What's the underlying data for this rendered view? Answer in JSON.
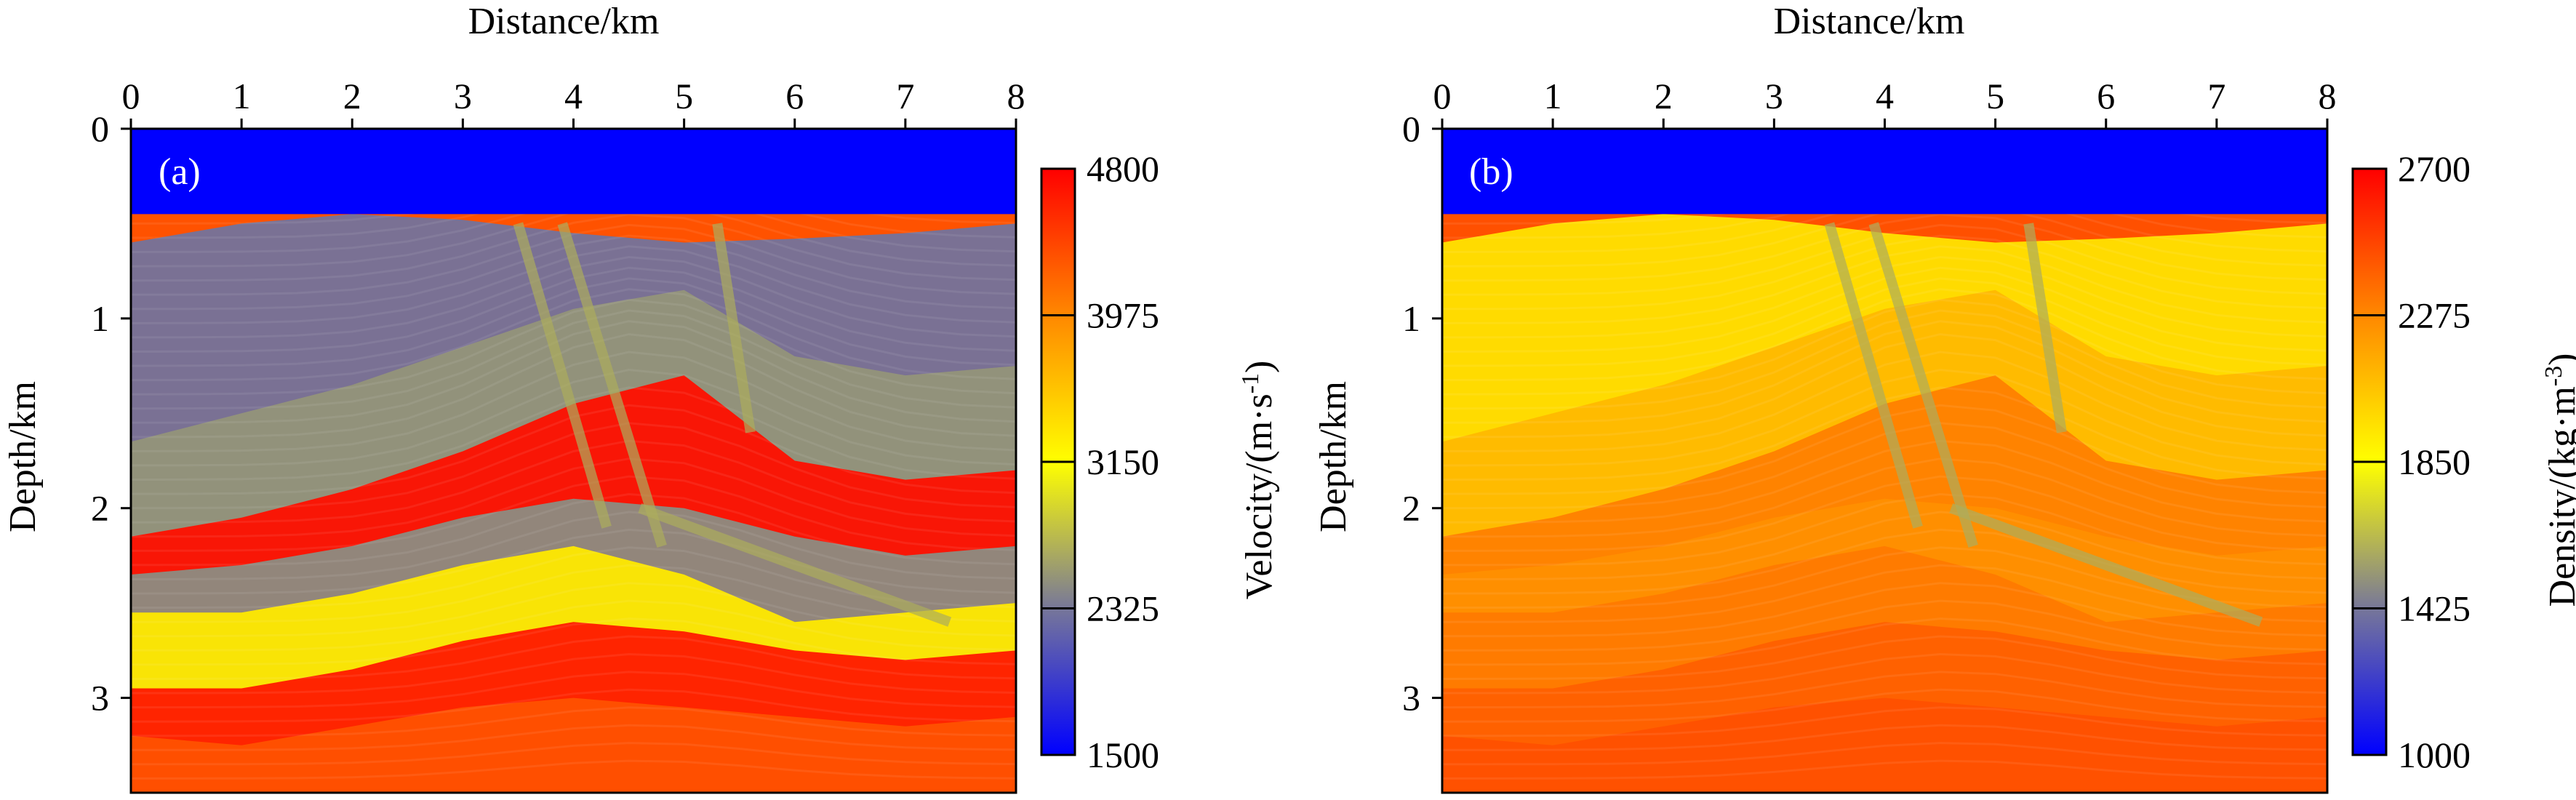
{
  "chart_data": [
    {
      "type": "heatmap",
      "panel_label": "(a)",
      "property": "velocity",
      "xlabel": "Distance/km",
      "ylabel": "Depth/km",
      "xlim": [
        0,
        8
      ],
      "ylim": [
        0,
        3.5
      ],
      "x_ticks": [
        "0",
        "1",
        "2",
        "3",
        "4",
        "5",
        "6",
        "7",
        "8"
      ],
      "y_ticks": [
        "0",
        "1",
        "2",
        "3"
      ],
      "colorbar": {
        "label_main": "Velocity/(m·s",
        "label_sup": "-1",
        "label_end": ")",
        "min": 1500,
        "max": 4800,
        "ticks": [
          "4800",
          "3975",
          "3150",
          "2325",
          "1500"
        ],
        "colors": [
          "#0000ff",
          "#777799",
          "#ffff00",
          "#ff8800",
          "#ff0000"
        ]
      },
      "water_layer": {
        "depth_km": 0.45,
        "value": 1500
      },
      "horizons": [
        {
          "x": [
            0,
            1,
            2,
            3,
            4,
            5,
            6,
            7,
            8
          ],
          "depth": [
            0.6,
            0.5,
            0.45,
            0.48,
            0.55,
            0.6,
            0.58,
            0.55,
            0.5
          ],
          "value": 2300
        },
        {
          "x": [
            0,
            1,
            2,
            3,
            4,
            5,
            6,
            7,
            8
          ],
          "depth": [
            1.65,
            1.5,
            1.35,
            1.15,
            0.95,
            0.85,
            1.2,
            1.3,
            1.25
          ],
          "value": 2500
        },
        {
          "x": [
            0,
            1,
            2,
            3,
            4,
            5,
            6,
            7,
            8
          ],
          "depth": [
            2.15,
            2.05,
            1.9,
            1.7,
            1.45,
            1.3,
            1.75,
            1.85,
            1.8
          ],
          "value": 4700
        },
        {
          "x": [
            0,
            1,
            2,
            3,
            4,
            5,
            6,
            7,
            8
          ],
          "depth": [
            2.35,
            2.3,
            2.2,
            2.05,
            1.95,
            2.0,
            2.15,
            2.25,
            2.2
          ],
          "value": 2450
        },
        {
          "x": [
            0,
            1,
            2,
            3,
            4,
            5,
            6,
            7,
            8
          ],
          "depth": [
            2.55,
            2.55,
            2.45,
            2.3,
            2.2,
            2.35,
            2.6,
            2.55,
            2.5
          ],
          "value": 3300
        },
        {
          "x": [
            0,
            1,
            2,
            3,
            4,
            5,
            6,
            7,
            8
          ],
          "depth": [
            2.95,
            2.95,
            2.85,
            2.7,
            2.6,
            2.65,
            2.75,
            2.8,
            2.75
          ],
          "value": 4650
        },
        {
          "x": [
            0,
            1,
            2,
            3,
            4,
            5,
            6,
            7,
            8
          ],
          "depth": [
            3.2,
            3.25,
            3.15,
            3.05,
            3.0,
            3.05,
            3.1,
            3.15,
            3.1
          ],
          "value": 4300
        }
      ],
      "faults": [
        {
          "x": [
            3.5,
            4.3
          ],
          "depth": [
            0.5,
            2.1
          ]
        },
        {
          "x": [
            3.9,
            4.8
          ],
          "depth": [
            0.5,
            2.2
          ]
        },
        {
          "x": [
            5.3,
            5.6
          ],
          "depth": [
            0.5,
            1.6
          ]
        },
        {
          "x": [
            4.6,
            7.4
          ],
          "depth": [
            2.0,
            2.6
          ]
        }
      ]
    },
    {
      "type": "heatmap",
      "panel_label": "(b)",
      "property": "density",
      "xlabel": "Distance/km",
      "ylabel": "Depth/km",
      "xlim": [
        0,
        8
      ],
      "ylim": [
        0,
        3.5
      ],
      "x_ticks": [
        "0",
        "1",
        "2",
        "3",
        "4",
        "5",
        "6",
        "7",
        "8"
      ],
      "y_ticks": [
        "0",
        "1",
        "2",
        "3"
      ],
      "colorbar": {
        "label_main": "Density/(kg·m",
        "label_sup": "-3",
        "label_end": ")",
        "min": 1000,
        "max": 2700,
        "ticks": [
          "2700",
          "2275",
          "1850",
          "1425",
          "1000"
        ],
        "colors": [
          "#0000ff",
          "#777799",
          "#ffff00",
          "#ff8800",
          "#ff0000"
        ]
      },
      "water_layer": {
        "depth_km": 0.45,
        "value": 1000
      },
      "horizons": [
        {
          "x": [
            0,
            1,
            2,
            3,
            4,
            5,
            6,
            7,
            8
          ],
          "depth": [
            0.6,
            0.5,
            0.45,
            0.48,
            0.55,
            0.6,
            0.58,
            0.55,
            0.5
          ],
          "value": 1950
        },
        {
          "x": [
            0,
            1,
            2,
            3,
            4,
            5,
            6,
            7,
            8
          ],
          "depth": [
            1.65,
            1.5,
            1.35,
            1.15,
            0.95,
            0.85,
            1.2,
            1.3,
            1.25
          ],
          "value": 2100
        },
        {
          "x": [
            0,
            1,
            2,
            3,
            4,
            5,
            6,
            7,
            8
          ],
          "depth": [
            2.15,
            2.05,
            1.9,
            1.7,
            1.45,
            1.3,
            1.75,
            1.85,
            1.8
          ],
          "value": 2300
        },
        {
          "x": [
            0,
            1,
            2,
            3,
            4,
            5,
            6,
            7,
            8
          ],
          "depth": [
            2.35,
            2.3,
            2.2,
            2.05,
            1.95,
            2.0,
            2.15,
            2.25,
            2.2
          ],
          "value": 2250
        },
        {
          "x": [
            0,
            1,
            2,
            3,
            4,
            5,
            6,
            7,
            8
          ],
          "depth": [
            2.55,
            2.55,
            2.45,
            2.3,
            2.2,
            2.35,
            2.6,
            2.55,
            2.5
          ],
          "value": 2320
        },
        {
          "x": [
            0,
            1,
            2,
            3,
            4,
            5,
            6,
            7,
            8
          ],
          "depth": [
            2.95,
            2.95,
            2.85,
            2.7,
            2.6,
            2.65,
            2.75,
            2.8,
            2.75
          ],
          "value": 2400
        },
        {
          "x": [
            0,
            1,
            2,
            3,
            4,
            5,
            6,
            7,
            8
          ],
          "depth": [
            3.2,
            3.25,
            3.15,
            3.05,
            3.0,
            3.05,
            3.1,
            3.15,
            3.1
          ],
          "value": 2450
        }
      ],
      "faults": [
        {
          "x": [
            3.5,
            4.3
          ],
          "depth": [
            0.5,
            2.1
          ]
        },
        {
          "x": [
            3.9,
            4.8
          ],
          "depth": [
            0.5,
            2.2
          ]
        },
        {
          "x": [
            5.3,
            5.6
          ],
          "depth": [
            0.5,
            1.6
          ]
        },
        {
          "x": [
            4.6,
            7.4
          ],
          "depth": [
            2.0,
            2.6
          ]
        }
      ]
    }
  ]
}
